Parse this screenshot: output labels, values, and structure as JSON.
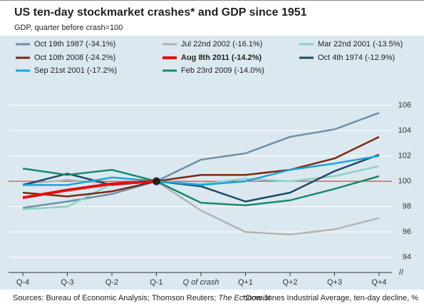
{
  "chart_data": {
    "type": "line",
    "title": "US ten-day stockmarket crashes* and GDP since 1951",
    "subtitle": "GDP, quarter before crash=100",
    "categories": [
      "Q-4",
      "Q-3",
      "Q-2",
      "Q-1",
      "Q of crash",
      "Q+1",
      "Q+2",
      "Q+3",
      "Q+4"
    ],
    "category_colors": [
      "#222",
      "#222",
      "#222",
      "#e3120b",
      "#222",
      "#222",
      "#222",
      "#222",
      "#222"
    ],
    "series": [
      {
        "name": "Oct 19th 1987 (-34.1%)",
        "color": "#6d91a8",
        "values": [
          97.9,
          98.4,
          99.0,
          100,
          101.7,
          102.2,
          103.5,
          104.1,
          105.4
        ]
      },
      {
        "name": "Jul 22nd 2002 (-16.1%)",
        "color": "#b3b3b3",
        "values": [
          99.8,
          100.1,
          99.8,
          100,
          97.7,
          96.0,
          95.8,
          96.2,
          97.1
        ]
      },
      {
        "name": "Mar 22nd 2001 (-13.5%)",
        "color": "#8dd0c6",
        "values": [
          97.8,
          98.0,
          99.8,
          100,
          99.8,
          100.2,
          100.0,
          100.4,
          101.2
        ]
      },
      {
        "name": "Oct 10th 2008 (-24.2%)",
        "color": "#7a2a10",
        "values": [
          99.1,
          98.8,
          99.2,
          100,
          100.5,
          100.5,
          100.9,
          101.8,
          103.5
        ]
      },
      {
        "name": "Aug 8th 2011 (-14.2%)",
        "color": "#e3120b",
        "bold": true,
        "values": [
          98.7,
          99.3,
          99.8,
          100,
          null,
          null,
          null,
          null,
          null
        ]
      },
      {
        "name": "Oct 4th 1974 (-12.9%)",
        "color": "#1d4a66",
        "values": [
          99.7,
          100.6,
          99.7,
          100,
          99.6,
          98.4,
          99.1,
          100.8,
          102.1
        ]
      },
      {
        "name": "Sep 21st 2001 (-17.2%)",
        "color": "#1ba3dc",
        "values": [
          99.7,
          99.7,
          100.3,
          100,
          99.7,
          100.0,
          100.9,
          101.4,
          102.0
        ]
      },
      {
        "name": "Feb 23rd 2009 (-14.0%)",
        "color": "#188a6c",
        "values": [
          101.0,
          100.5,
          100.9,
          100,
          98.3,
          98.1,
          98.5,
          99.4,
          100.4
        ]
      }
    ],
    "ylim": [
      92.8,
      108
    ],
    "yticks": [
      94,
      96,
      98,
      100,
      102,
      104,
      106
    ],
    "grid": true,
    "reference_line": {
      "value": 100,
      "color": "#e3120b"
    },
    "index_point": {
      "category": 3,
      "value": 100
    },
    "source": [
      "Sources: Bureau of Economic Analysis; Thomson Reuters; ",
      "The Economist"
    ],
    "note": "*Dow Jones Industrial Average, ten-day decline, %"
  }
}
